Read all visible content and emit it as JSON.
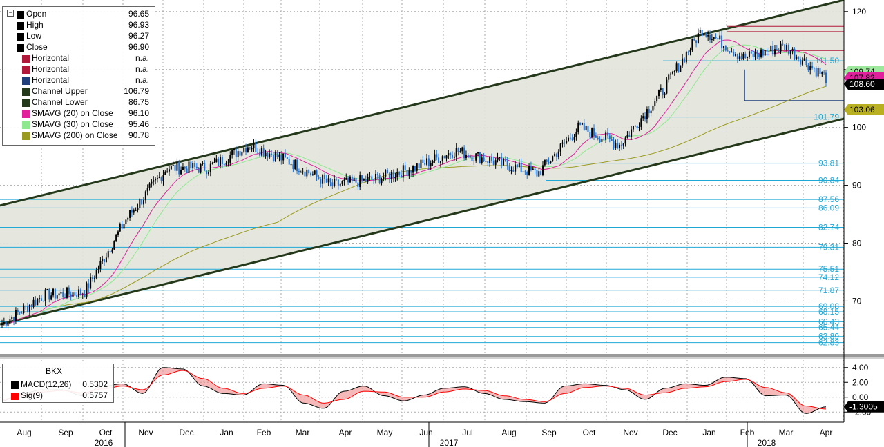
{
  "legend": {
    "items": [
      {
        "label": "Open",
        "value": "96.65",
        "color": "#000000"
      },
      {
        "label": "High",
        "value": "96.93",
        "color": "#000000"
      },
      {
        "label": "Low",
        "value": "96.27",
        "color": "#000000"
      },
      {
        "label": "Close",
        "value": "96.90",
        "color": "#000000"
      },
      {
        "label": "Horizontal",
        "value": "n.a.",
        "color": "#b0193a"
      },
      {
        "label": "Horizontal",
        "value": "n.a.",
        "color": "#b0193a"
      },
      {
        "label": "Horizontal",
        "value": "n.a.",
        "color": "#1f3f7a"
      },
      {
        "label": "Channel Upper",
        "value": "106.79",
        "color": "#24381a"
      },
      {
        "label": "Channel Lower",
        "value": "86.75",
        "color": "#24381a"
      },
      {
        "label": "SMAVG (20) on Close",
        "value": "96.10",
        "color": "#e0209c"
      },
      {
        "label": "SMAVG (30) on Close",
        "value": "95.46",
        "color": "#8ee88e"
      },
      {
        "label": "SMAVG (200) on Close",
        "value": "90.78",
        "color": "#9a9a20"
      }
    ]
  },
  "macd_legend": {
    "title": "BKX",
    "items": [
      {
        "label": "MACD(12,26)",
        "value": "0.5302",
        "color": "#000000"
      },
      {
        "label": "Sig(9)",
        "value": "0.5757",
        "color": "#ff0000"
      }
    ]
  },
  "chart_data": [
    {
      "type": "candlestick",
      "title": "BKX",
      "y_ticks": [
        "120",
        "110",
        "100",
        "90",
        "80",
        "70"
      ],
      "ylim": [
        61,
        122
      ],
      "months": [
        "Aug",
        "Sep",
        "Oct",
        "Nov",
        "Dec",
        "Jan",
        "Feb",
        "Mar",
        "Apr",
        "May",
        "Jun",
        "Jul",
        "Aug",
        "Sep",
        "Oct",
        "Nov",
        "Dec",
        "Jan",
        "Feb",
        "Mar",
        "Apr"
      ],
      "years": [
        "2016",
        "2017",
        "2018"
      ],
      "fib_levels": [
        "111.50",
        "101.79",
        "93.81",
        "90.84",
        "87.56",
        "86.09",
        "82.74",
        "79.31",
        "75.51",
        "74.12",
        "71.87",
        "69.08",
        "68.15",
        "66.43",
        "65.44",
        "63.89",
        "62.83"
      ],
      "price_badges": [
        {
          "label": "109.74",
          "color": "#9ee89e"
        },
        {
          "label": "107.82",
          "color": "#e0209c"
        },
        {
          "label": "108.60",
          "color": "#000000"
        },
        {
          "label": "103.06",
          "color": "#b8b020"
        }
      ],
      "channel": {
        "upper_start": 86.5,
        "upper_end": 122,
        "lower_start": 66,
        "lower_end": 101.5
      },
      "horizontal_lines": [
        117.5,
        116.5,
        113.3
      ],
      "series_key_points": [
        {
          "date": "Aug 2016",
          "close": 66
        },
        {
          "date": "Sep 2016",
          "close": 71
        },
        {
          "date": "Oct 2016",
          "close": 71.5
        },
        {
          "date": "Nov 2016",
          "close": 84
        },
        {
          "date": "Dec 2016",
          "close": 93
        },
        {
          "date": "Jan 2017",
          "close": 93
        },
        {
          "date": "Feb 2017",
          "close": 97
        },
        {
          "date": "Mar 2017",
          "close": 94
        },
        {
          "date": "Apr 2017",
          "close": 90
        },
        {
          "date": "May 2017",
          "close": 91
        },
        {
          "date": "Jun 2017",
          "close": 93
        },
        {
          "date": "Jul 2017",
          "close": 96
        },
        {
          "date": "Aug 2017",
          "close": 94
        },
        {
          "date": "Sep 2017",
          "close": 92
        },
        {
          "date": "Oct 2017",
          "close": 100
        },
        {
          "date": "Nov 2017",
          "close": 97
        },
        {
          "date": "Dec 2017",
          "close": 106
        },
        {
          "date": "Jan 2018",
          "close": 117
        },
        {
          "date": "Feb 2018",
          "close": 112
        },
        {
          "date": "Mar 2018",
          "close": 114
        },
        {
          "date": "Apr 2018",
          "close": 108.6
        }
      ]
    },
    {
      "type": "line",
      "title": "BKX",
      "y_ticks": [
        "4.00",
        "2.00",
        "0.00",
        "-2.00"
      ],
      "ylim": [
        -3,
        5
      ],
      "current_badge": "-1.3005",
      "series": [
        {
          "name": "MACD(12,26)",
          "values": [
            -0.5,
            0.5,
            1,
            1,
            0.2,
            1.5,
            1.8,
            0.5,
            4,
            3.8,
            1.5,
            0.5,
            0.3,
            1.8,
            1.6,
            -0.8,
            -1.5,
            0.8,
            1.5,
            0.2,
            -0.5,
            0.3,
            1.2,
            1.4,
            0.5,
            -0.3,
            -0.6,
            -0.8,
            1.5,
            1.8,
            1.6,
            1,
            -0.3,
            1.2,
            1.8,
            1.6,
            2.7,
            2.5,
            0.2,
            0.3,
            -2.2,
            -1.3
          ]
        },
        {
          "name": "Sig(9)",
          "values": [
            -0.3,
            0.2,
            0.7,
            0.9,
            0.6,
            1.1,
            1.5,
            1,
            3,
            3.6,
            2.5,
            1.2,
            0.5,
            1.2,
            1.5,
            0.3,
            -0.8,
            -0.3,
            0.8,
            0.7,
            0,
            0,
            0.7,
            1.1,
            0.9,
            0.2,
            -0.3,
            -0.6,
            0.5,
            1.3,
            1.5,
            1.2,
            0.3,
            0.6,
            1.2,
            1.4,
            2.1,
            2.4,
            1.3,
            0.6,
            -1.2,
            -1.6
          ]
        }
      ]
    }
  ]
}
